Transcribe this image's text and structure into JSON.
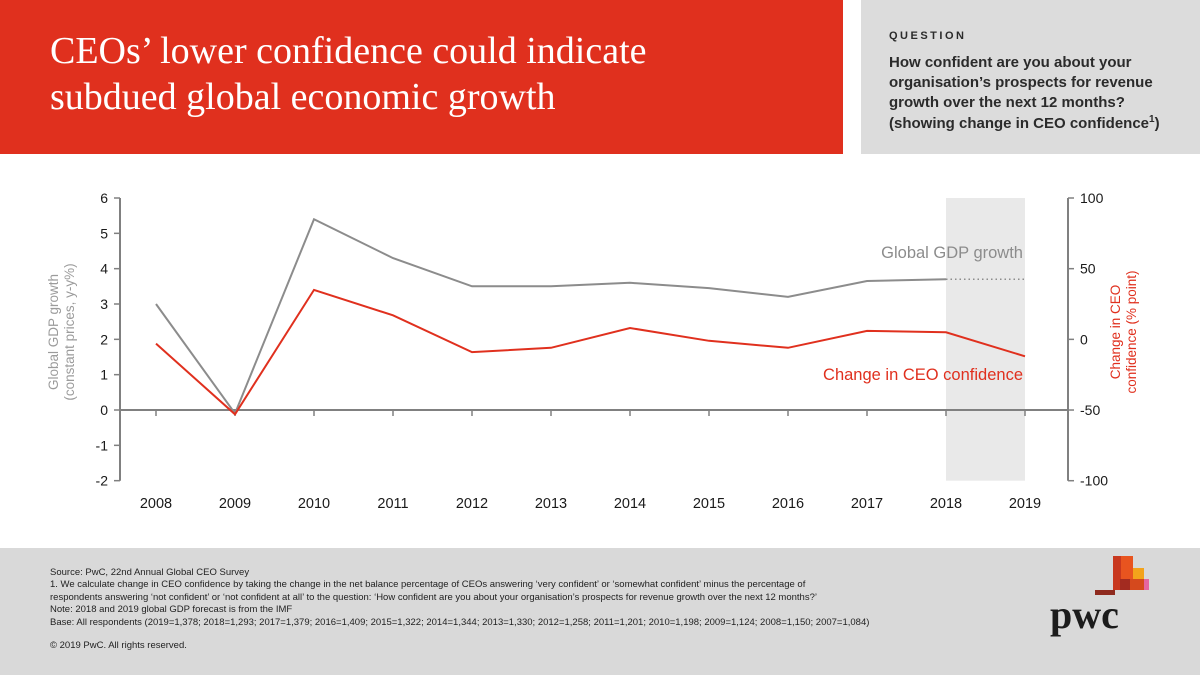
{
  "header": {
    "title_line1": "CEOs’ lower confidence could indicate",
    "title_line2": "subdued global economic growth"
  },
  "question": {
    "label": "QUESTION",
    "text": "How confident are you about your organisation’s prospects for revenue growth over the next 12 months? (showing change in CEO confidence",
    "footnote_marker": "1",
    "close_paren": ")"
  },
  "chart_data": {
    "type": "line",
    "x": [
      2008,
      2009,
      2010,
      2011,
      2012,
      2013,
      2014,
      2015,
      2016,
      2017,
      2018,
      2019
    ],
    "series": [
      {
        "name": "Global GDP growth",
        "axis": "left",
        "color": "#8c8c8c",
        "values": [
          3.0,
          -0.1,
          5.4,
          4.3,
          3.5,
          3.5,
          3.6,
          3.45,
          3.2,
          3.65,
          3.7,
          3.7
        ],
        "dotted_from_index": 10,
        "dotted_note": "2018-2019 segment dotted (IMF forecast)"
      },
      {
        "name": "Change in CEO confidence",
        "axis": "right",
        "color": "#e0301e",
        "values": [
          -3,
          -53,
          35,
          17,
          -9,
          -6,
          8,
          -1,
          -6,
          6,
          5,
          -12
        ]
      }
    ],
    "left_axis": {
      "label_lines": [
        "Global GDP growth",
        "(constant prices, y-y%)"
      ],
      "min": -2,
      "max": 6,
      "ticks": [
        6,
        5,
        4,
        3,
        2,
        1,
        0,
        -1,
        -2
      ]
    },
    "right_axis": {
      "label_lines": [
        "Change in CEO",
        "confidence (% point)"
      ],
      "min": -100,
      "max": 100,
      "ticks": [
        100,
        50,
        0,
        -50,
        -100
      ]
    },
    "highlight_band": {
      "from": 2018,
      "to": 2019
    },
    "grid": false,
    "legend_position": "inline-labels",
    "colors": {
      "band": "#e9e9e9",
      "axis": "#808080",
      "tick_text": "#1a1a1a",
      "left_title": "#9b9b9b"
    }
  },
  "footer": {
    "notes": [
      "Source: PwC, 22nd Annual Global CEO Survey",
      "1. We calculate change in CEO confidence by taking the change in the net balance percentage of CEOs answering ‘very confident’ or ‘somewhat confident’ minus the percentage of",
      "respondents answering ‘not confident’ or ‘not confident at all’ to the question: ‘How confident are you about your organisation’s prospects for revenue growth over the next 12 months?’",
      "Note: 2018 and 2019 global GDP forecast is from the IMF",
      "Base: All respondents (2019=1,378; 2018=1,293; 2017=1,379; 2016=1,409; 2015=1,322; 2014=1,344; 2013=1,330; 2012=1,258; 2011=1,201; 2010=1,198; 2009=1,124; 2008=1,150; 2007=1,084)"
    ],
    "copyright": "© 2019 PwC. All rights reserved.",
    "logo_text": "pwc"
  },
  "colors": {
    "banner_red": "#e0301e",
    "question_panel_gray": "#dcdcdc",
    "footer_gray": "#d9d9d9",
    "gdp_line": "#8c8c8c",
    "ceo_line": "#e0301e",
    "forecast_band": "#e9e9e9"
  }
}
